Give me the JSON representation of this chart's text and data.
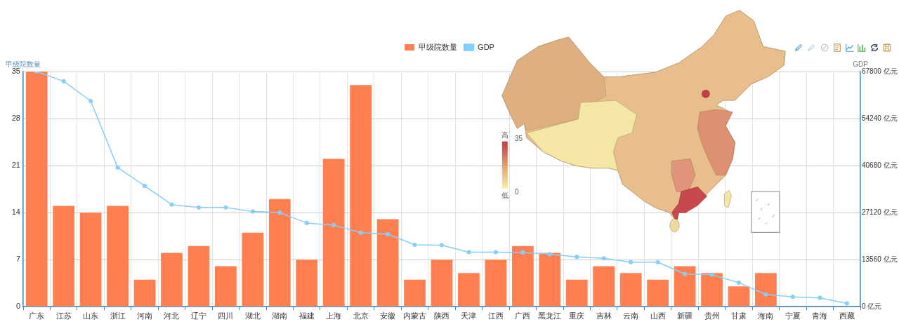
{
  "chart_data": {
    "type": "bar",
    "categories": [
      "广东",
      "江苏",
      "山东",
      "浙江",
      "河南",
      "河北",
      "辽宁",
      "四川",
      "湖北",
      "湖南",
      "福建",
      "上海",
      "北京",
      "安徽",
      "内蒙古",
      "陕西",
      "天津",
      "江西",
      "广西",
      "黑龙江",
      "重庆",
      "吉林",
      "云南",
      "山西",
      "新疆",
      "贵州",
      "甘肃",
      "海南",
      "宁夏",
      "青海",
      "西藏"
    ],
    "series": [
      {
        "name": "甲级院数量",
        "color": "#ff7f50",
        "values": [
          35,
          15,
          14,
          15,
          4,
          8,
          9,
          6,
          11,
          16,
          7,
          22,
          33,
          13,
          4,
          7,
          5,
          7,
          9,
          8,
          4,
          6,
          5,
          4,
          6,
          5,
          3,
          5,
          0,
          0,
          0
        ]
      },
      {
        "name": "GDP",
        "type": "line",
        "color": "#87cefa",
        "axis": "y2",
        "values": [
          67800,
          65000,
          59300,
          40100,
          34800,
          29400,
          28600,
          28600,
          27400,
          27100,
          24100,
          23500,
          21300,
          20900,
          17800,
          17700,
          15700,
          15700,
          15600,
          15100,
          14300,
          13900,
          12800,
          12800,
          9400,
          9200,
          6900,
          3500,
          2800,
          2500,
          900
        ]
      }
    ],
    "ylabel": "甲级院数量",
    "y2label": "GDP",
    "ylim": [
      0,
      35
    ],
    "yticks": [
      0,
      7,
      14,
      21,
      28,
      35
    ],
    "y2lim": [
      0,
      67800
    ],
    "y2ticks": [
      {
        "value": 0,
        "label": "0 亿元"
      },
      {
        "value": 13560,
        "label": "13560 亿元"
      },
      {
        "value": 27120,
        "label": "27120 亿元"
      },
      {
        "value": 40680,
        "label": "40680 亿元"
      },
      {
        "value": 54240,
        "label": "54240 亿元"
      },
      {
        "value": 67800,
        "label": "67800 亿元"
      }
    ],
    "grid": true,
    "legend": "top",
    "marker": "circle",
    "annotations": [
      "高",
      "35",
      "0",
      "低"
    ]
  }
}
